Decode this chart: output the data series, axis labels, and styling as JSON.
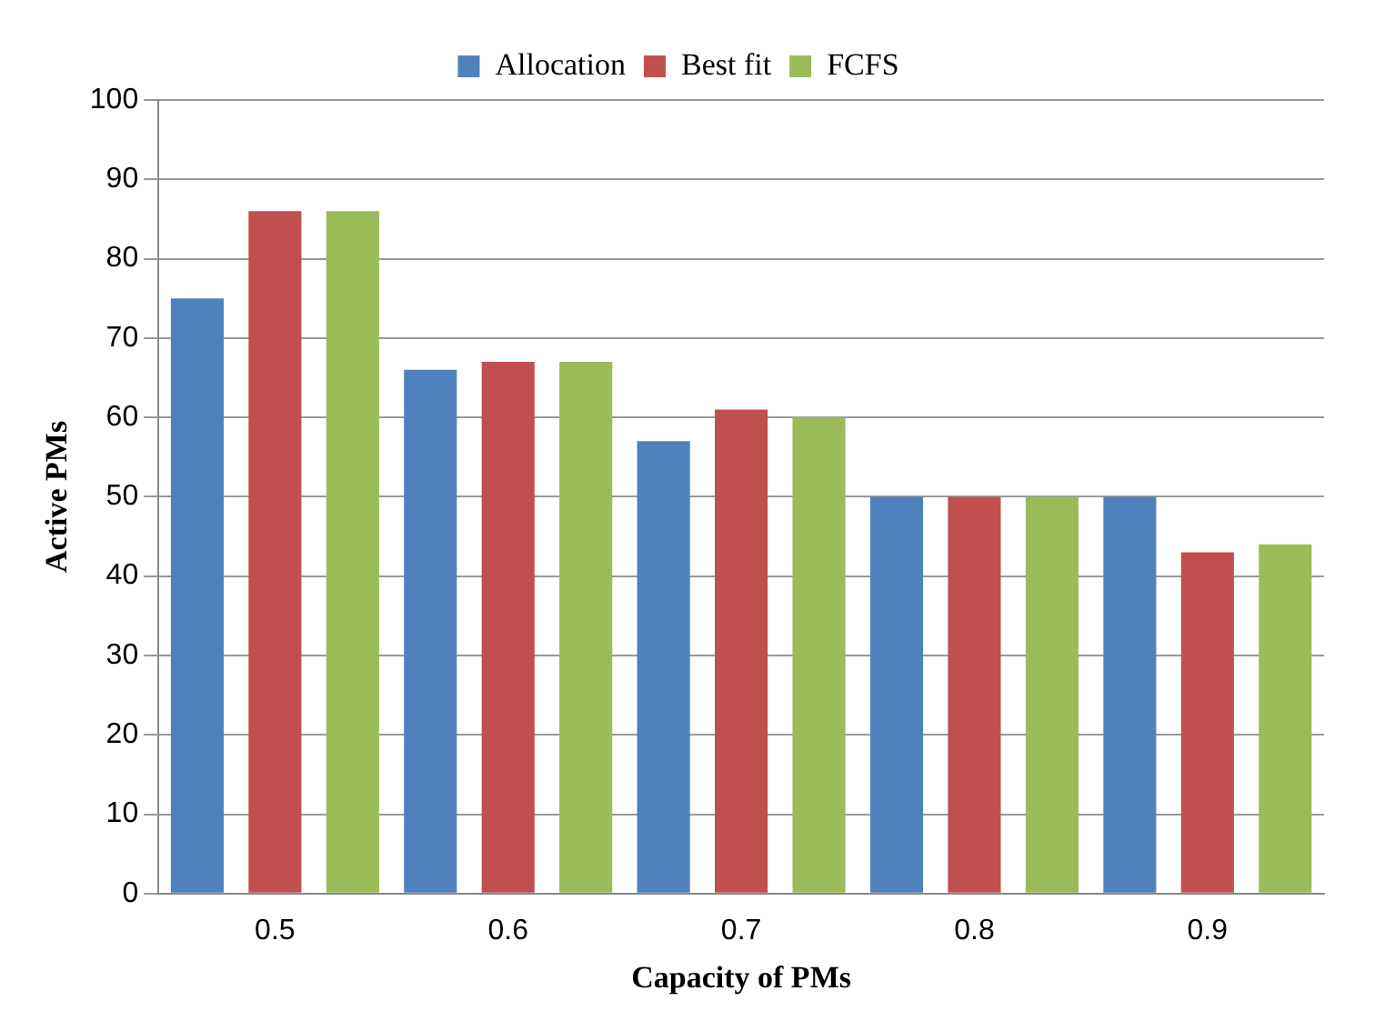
{
  "chart_data": {
    "type": "bar",
    "xlabel": "Capacity of PMs",
    "ylabel": "Active PMs",
    "categories": [
      "0.5",
      "0.6",
      "0.7",
      "0.8",
      "0.9"
    ],
    "series": [
      {
        "name": "Allocation",
        "color": "#4f81bd",
        "values": [
          75,
          66,
          57,
          50,
          50
        ]
      },
      {
        "name": "Best fit",
        "color": "#c0504d",
        "values": [
          86,
          67,
          61,
          50,
          43
        ]
      },
      {
        "name": "FCFS",
        "color": "#9bbb59",
        "values": [
          86,
          67,
          60,
          50,
          44
        ]
      }
    ],
    "ylim": [
      0,
      100
    ],
    "yticks": [
      0,
      10,
      20,
      30,
      40,
      50,
      60,
      70,
      80,
      90,
      100
    ],
    "grid": "y",
    "legend": "top"
  }
}
